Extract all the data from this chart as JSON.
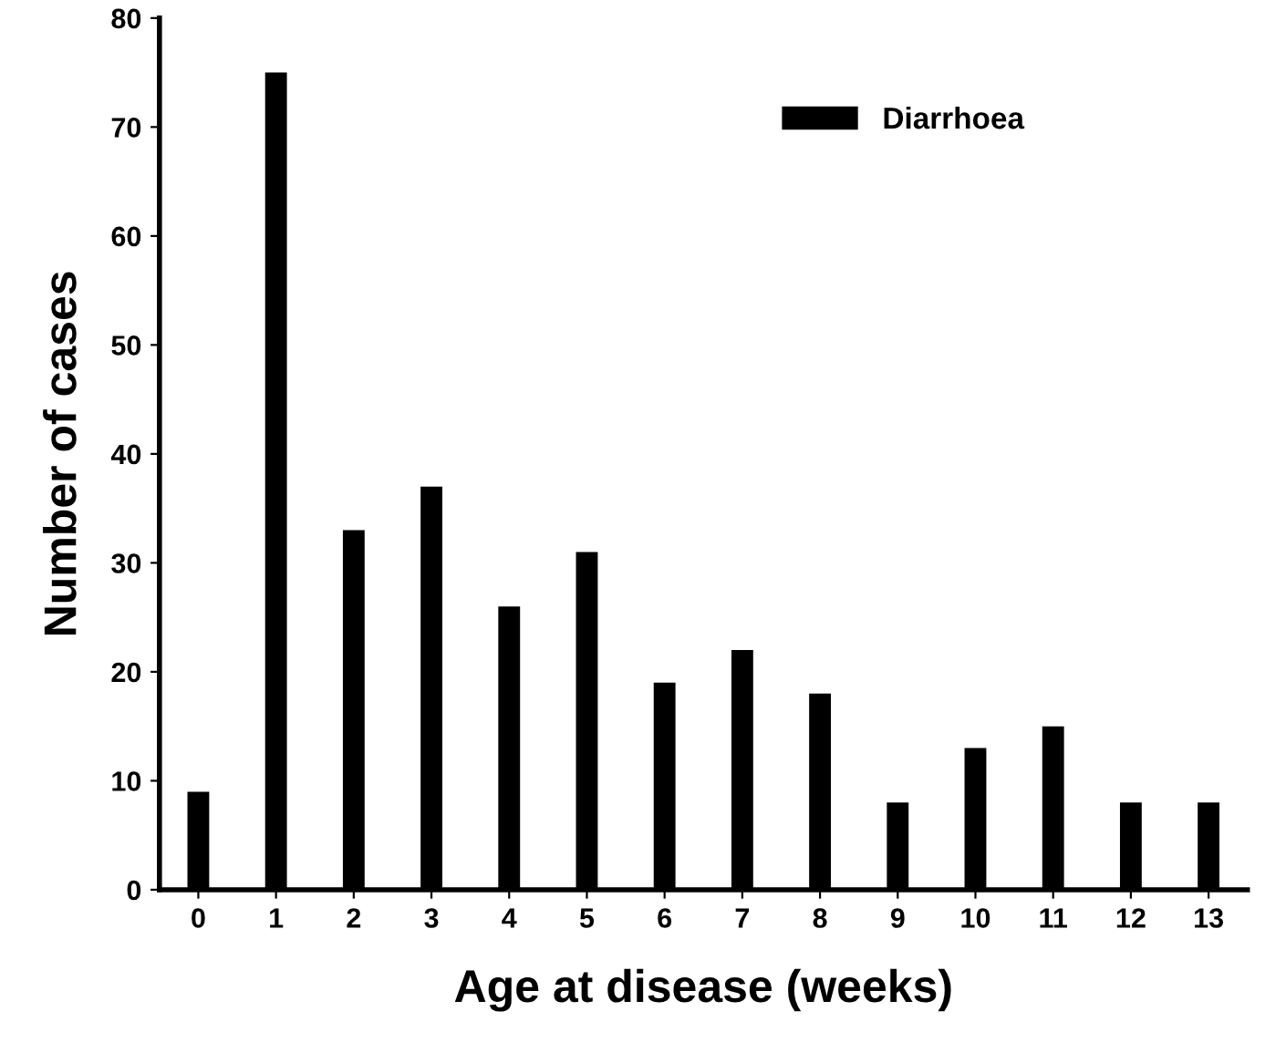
{
  "chart_data": {
    "type": "bar",
    "xlabel": "Age at disease (weeks)",
    "ylabel": "Number of cases",
    "categories": [
      "0",
      "1",
      "2",
      "3",
      "4",
      "5",
      "6",
      "7",
      "8",
      "9",
      "10",
      "11",
      "12",
      "13"
    ],
    "series": [
      {
        "name": "Diarrhoea",
        "color": "#000000",
        "values": [
          9,
          75,
          33,
          37,
          26,
          31,
          19,
          22,
          18,
          8,
          13,
          15,
          8,
          8
        ]
      }
    ],
    "ylim": [
      0,
      80
    ],
    "yticks": [
      0,
      10,
      20,
      30,
      40,
      50,
      60,
      70,
      80
    ],
    "legend": "top right",
    "grid": false
  }
}
